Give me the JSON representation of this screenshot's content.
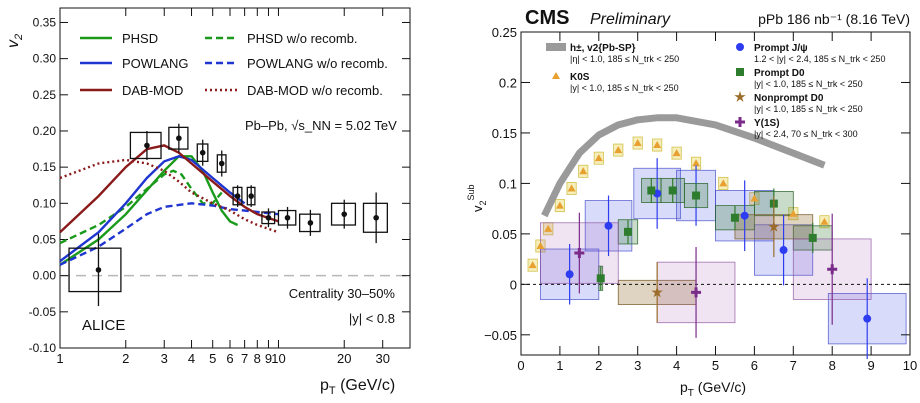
{
  "chart_data": [
    {
      "type": "line",
      "xlabel": "p_T (GeV/c)",
      "ylabel": "v_2",
      "xscale": "log",
      "xlim": [
        1,
        40
      ],
      "ylim": [
        -0.1,
        0.37
      ],
      "xticks": [
        1,
        2,
        3,
        4,
        5,
        6,
        7,
        8,
        9,
        10,
        20,
        30
      ],
      "xtick_labels": [
        "1",
        "2",
        "3",
        "4",
        "5",
        "6",
        "7",
        "8",
        "9",
        "10",
        "20",
        "30"
      ],
      "yticks": [
        -0.1,
        -0.05,
        0,
        0.05,
        0.1,
        0.15,
        0.2,
        0.25,
        0.3,
        0.35
      ],
      "ytick_labels": [
        "-0.10",
        "-0.05",
        "0.00",
        "0.05",
        "0.10",
        "0.15",
        "0.20",
        "0.25",
        "0.30",
        "0.35"
      ],
      "legend_position": "top",
      "annotations": {
        "system": "Pb–Pb, √s_NN = 5.02 TeV",
        "centrality": "Centrality 30–50%",
        "rapidity": "|y| < 0.8",
        "experiment": "ALICE"
      },
      "series": [
        {
          "name": "PHSD",
          "color": "#1a9a1a",
          "dash": "solid",
          "x": [
            1.0,
            1.5,
            2.0,
            2.5,
            3.0,
            3.5,
            4.0,
            4.5,
            5.0,
            5.5,
            6.0,
            6.5
          ],
          "y": [
            0.015,
            0.05,
            0.085,
            0.118,
            0.145,
            0.165,
            0.165,
            0.145,
            0.115,
            0.09,
            0.075,
            0.07
          ]
        },
        {
          "name": "PHSD w/o recomb.",
          "color": "#1a9a1a",
          "dash": "dashed",
          "x": [
            1.0,
            1.5,
            2.0,
            2.5,
            3.0,
            3.3,
            3.6,
            4.0,
            4.5,
            5.0,
            5.5
          ],
          "y": [
            0.045,
            0.07,
            0.095,
            0.12,
            0.14,
            0.145,
            0.14,
            0.12,
            0.1,
            0.1,
            0.115
          ]
        },
        {
          "name": "POWLANG",
          "color": "#1f35d0",
          "dash": "solid",
          "x": [
            1.0,
            1.5,
            2.0,
            2.5,
            3.0,
            3.5,
            4.0,
            5.0,
            6.0,
            7.0
          ],
          "y": [
            0.02,
            0.06,
            0.1,
            0.135,
            0.158,
            0.165,
            0.16,
            0.135,
            0.115,
            0.1
          ]
        },
        {
          "name": "POWLANG w/o recomb.",
          "color": "#1f35d0",
          "dash": "dashed",
          "x": [
            1.0,
            1.5,
            2.0,
            2.5,
            3.0,
            4.0,
            5.0,
            6.0,
            7.0,
            8.0,
            10.0
          ],
          "y": [
            0.015,
            0.04,
            0.065,
            0.085,
            0.095,
            0.1,
            0.097,
            0.092,
            0.09,
            0.088,
            0.085
          ]
        },
        {
          "name": "DAB-MOD",
          "color": "#8b1a1a",
          "dash": "solid",
          "x": [
            1.0,
            1.5,
            2.0,
            2.5,
            3.0,
            3.5,
            4.0,
            5.0,
            6.0,
            7.0,
            8.0,
            10.0
          ],
          "y": [
            0.06,
            0.11,
            0.15,
            0.175,
            0.18,
            0.17,
            0.155,
            0.13,
            0.11,
            0.095,
            0.085,
            0.075
          ]
        },
        {
          "name": "DAB-MOD w/o recomb.",
          "color": "#8b1a1a",
          "dash": "dashdot",
          "x": [
            1.0,
            1.5,
            2.0,
            2.5,
            3.0,
            3.5,
            4.0,
            5.0,
            6.0,
            7.0,
            8.0,
            10.0
          ],
          "y": [
            0.135,
            0.155,
            0.16,
            0.155,
            0.145,
            0.13,
            0.115,
            0.1,
            0.09,
            0.078,
            0.07,
            0.06
          ]
        }
      ],
      "data_points": {
        "name": "ALICE",
        "x": [
          1.5,
          2.5,
          3.5,
          4.5,
          5.5,
          6.5,
          7.5,
          9.0,
          11.0,
          14.0,
          20.0,
          28.0
        ],
        "y": [
          0.008,
          0.18,
          0.19,
          0.17,
          0.155,
          0.11,
          0.11,
          0.08,
          0.08,
          0.073,
          0.085,
          0.08
        ],
        "stat": [
          0.05,
          0.02,
          0.02,
          0.018,
          0.018,
          0.015,
          0.015,
          0.013,
          0.015,
          0.018,
          0.02,
          0.035
        ],
        "box_halfwidth": [
          0.4,
          0.4,
          0.35,
          0.25,
          0.25,
          0.3,
          0.3,
          0.6,
          1.0,
          1.5,
          2.5,
          3.5
        ],
        "sys": [
          0.03,
          0.018,
          0.015,
          0.012,
          0.012,
          0.012,
          0.012,
          0.008,
          0.01,
          0.012,
          0.015,
          0.02
        ]
      }
    },
    {
      "type": "scatter",
      "title": "CMS",
      "subtitle": "Preliminary",
      "lumi_label": "pPb 186 nb⁻¹ (8.16 TeV)",
      "xlabel": "p_T (GeV/c)",
      "ylabel": "v_2^Sub",
      "xlim": [
        0,
        10
      ],
      "ylim": [
        -0.07,
        0.25
      ],
      "xticks": [
        0,
        1,
        2,
        3,
        4,
        5,
        6,
        7,
        8,
        9,
        10
      ],
      "xtick_labels": [
        "0",
        "1",
        "2",
        "3",
        "4",
        "5",
        "6",
        "7",
        "8",
        "9",
        "10"
      ],
      "yticks": [
        -0.05,
        0,
        0.05,
        0.1,
        0.15,
        0.2,
        0.25
      ],
      "ytick_labels": [
        "−0.05",
        "0",
        "0.05",
        "0.1",
        "0.15",
        "0.2",
        "0.25"
      ],
      "legend_position": "top",
      "series": [
        {
          "name": "h±, v2{Pb-SP}",
          "label_extra": "|η| < 1.0, 185 ≤ N_trk < 250",
          "color": "#9a9a9a",
          "kind": "band",
          "x": [
            0.6,
            1.0,
            1.5,
            2.0,
            2.5,
            3.0,
            3.5,
            4.0,
            5.0,
            6.0,
            7.0,
            7.8
          ],
          "y": [
            0.068,
            0.1,
            0.13,
            0.148,
            0.158,
            0.163,
            0.165,
            0.165,
            0.158,
            0.145,
            0.13,
            0.118
          ]
        },
        {
          "name": "K0S",
          "label_extra": "|y| < 1.0, 185 ≤ N_trk < 250",
          "color": "#e8a030",
          "kind": "triangle",
          "x": [
            0.3,
            0.5,
            0.7,
            1.0,
            1.3,
            1.6,
            2.0,
            2.5,
            3.0,
            3.5,
            4.0,
            4.5,
            5.2,
            6.0,
            7.0,
            7.8
          ],
          "y": [
            0.019,
            0.038,
            0.055,
            0.078,
            0.095,
            0.112,
            0.125,
            0.133,
            0.14,
            0.138,
            0.13,
            0.12,
            0.1,
            0.085,
            0.07,
            0.062
          ]
        },
        {
          "name": "Prompt J/ψ",
          "label_extra": "1.2 < |y| < 2.4, 185 ≤ N_trk < 250",
          "color": "#2d3cf0",
          "kind": "circle",
          "x": [
            1.25,
            2.25,
            3.5,
            4.5,
            5.75,
            6.75,
            8.9
          ],
          "y": [
            0.01,
            0.058,
            0.09,
            0.088,
            0.068,
            0.034,
            -0.034
          ],
          "err": [
            0.03,
            0.03,
            0.035,
            0.03,
            0.035,
            0.035,
            0.04
          ]
        },
        {
          "name": "Prompt D0",
          "label_extra": "|y| < 1.0, 185 ≤ N_trk < 250",
          "color": "#2e7d2e",
          "kind": "square",
          "x": [
            2.05,
            2.75,
            3.35,
            3.9,
            4.5,
            5.5,
            6.5,
            7.5
          ],
          "y": [
            0.006,
            0.052,
            0.093,
            0.093,
            0.088,
            0.066,
            0.08,
            0.046
          ],
          "err": [
            0.012,
            0.012,
            0.012,
            0.012,
            0.012,
            0.012,
            0.015,
            0.015
          ]
        },
        {
          "name": "Nonprompt D0",
          "label_extra": "|y| < 1.0, 185 ≤ N_trk < 250",
          "color": "#9b6c2a",
          "kind": "star",
          "x": [
            3.5,
            6.5
          ],
          "y": [
            -0.008,
            0.057
          ],
          "err": [
            0.03,
            0.03
          ]
        },
        {
          "name": "Υ(1S)",
          "label_extra": "|y| < 2.4, 70 ≤ N_trk < 300",
          "color": "#7a2b8a",
          "kind": "cross",
          "x": [
            1.5,
            4.5,
            8.0
          ],
          "y": [
            0.031,
            -0.008,
            0.015
          ],
          "err": [
            0.04,
            0.045,
            0.055
          ]
        }
      ]
    }
  ]
}
